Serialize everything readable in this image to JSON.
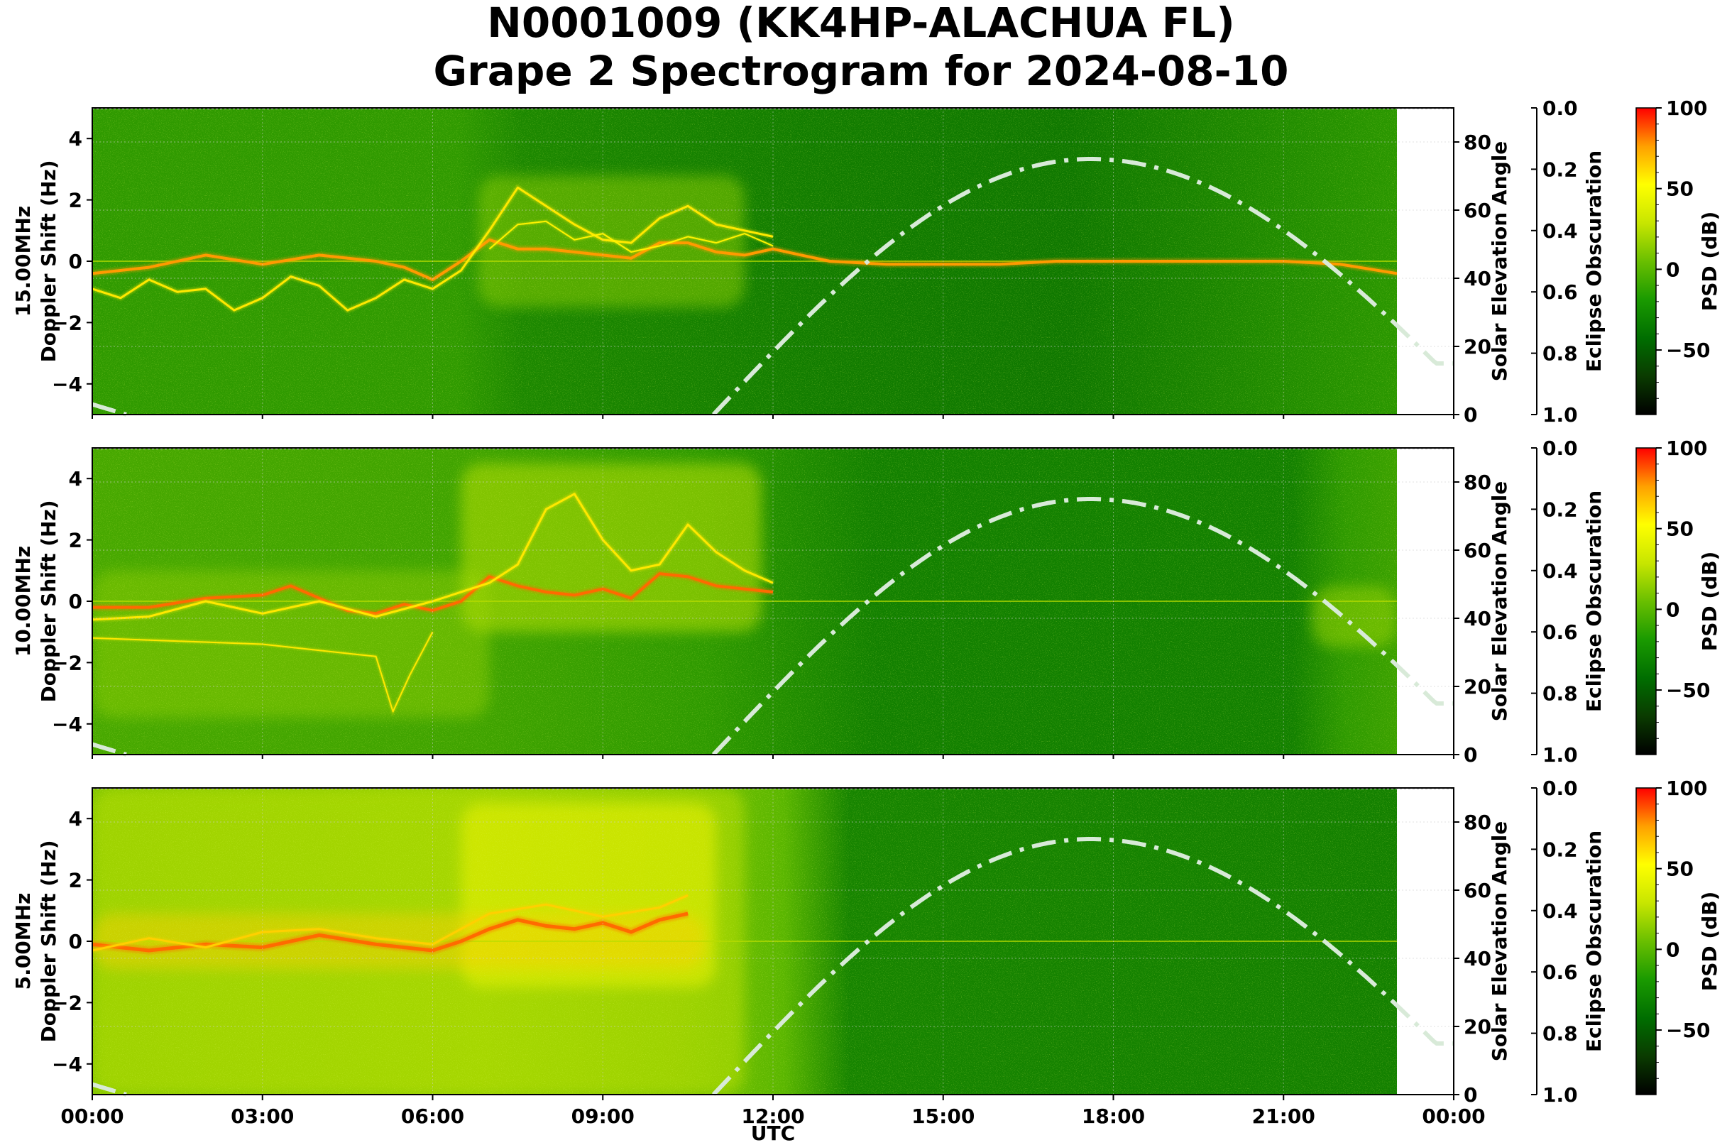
{
  "title_line1": "N0001009 (KK4HP-ALACHUA FL)",
  "title_line2": "Grape 2 Spectrogram for 2024-08-10",
  "chart_data": {
    "type": "heatmap",
    "panels": [
      {
        "ylabel": "15.00MHz\nDoppler Shift (Hz)",
        "band": "15MHz",
        "traces": [
          {
            "t": [
              0,
              1,
              2,
              3,
              4,
              5,
              5.5,
              6,
              6.5,
              7,
              7.5,
              8,
              8.5,
              9,
              9.5,
              10,
              10.5,
              11,
              11.5,
              12,
              12.5,
              13,
              14,
              15,
              16,
              17,
              18,
              19,
              20,
              21,
              22,
              23
            ],
            "f": [
              -0.4,
              -0.2,
              0.2,
              -0.1,
              0.2,
              0.0,
              -0.2,
              -0.6,
              0.0,
              0.7,
              0.4,
              0.4,
              0.3,
              0.2,
              0.1,
              0.6,
              0.6,
              0.3,
              0.2,
              0.4,
              0.2,
              0.0,
              -0.1,
              -0.1,
              -0.1,
              0.0,
              0.0,
              0.0,
              0.0,
              0.0,
              -0.1,
              -0.4
            ],
            "w": 4,
            "c": "#ff9a00"
          },
          {
            "t": [
              0,
              0.5,
              1,
              1.5,
              2,
              2.5,
              3,
              3.5,
              4,
              4.5,
              5,
              5.5,
              6,
              6.5,
              7,
              7.5,
              8,
              8.5,
              9,
              9.5,
              10,
              10.5,
              11,
              11.5,
              12
            ],
            "f": [
              -0.9,
              -1.2,
              -0.6,
              -1.0,
              -0.9,
              -1.6,
              -1.2,
              -0.5,
              -0.8,
              -1.6,
              -1.2,
              -0.6,
              -0.9,
              -0.3,
              1.0,
              2.4,
              1.8,
              1.2,
              0.7,
              0.6,
              1.4,
              1.8,
              1.2,
              1.0,
              0.8
            ],
            "w": 3,
            "c": "#ffe800"
          },
          {
            "t": [
              7,
              7.5,
              8,
              8.5,
              9,
              9.5,
              10,
              10.5,
              11,
              11.5,
              12
            ],
            "f": [
              0.4,
              1.2,
              1.3,
              0.7,
              0.9,
              0.3,
              0.5,
              0.8,
              0.6,
              0.9,
              0.5
            ],
            "w": 2,
            "c": "#fff200"
          }
        ]
      },
      {
        "ylabel": "10.00MHz\nDoppler Shift (Hz)",
        "band": "10MHz",
        "traces": [
          {
            "t": [
              0,
              1,
              2,
              3,
              3.5,
              4,
              4.5,
              5,
              5.5,
              6,
              6.5,
              7,
              7.5,
              8,
              8.5,
              9,
              9.5,
              10,
              10.5,
              11,
              11.5,
              12
            ],
            "f": [
              -0.2,
              -0.2,
              0.1,
              0.2,
              0.5,
              0.1,
              -0.3,
              -0.4,
              -0.1,
              -0.3,
              0.0,
              0.8,
              0.5,
              0.3,
              0.2,
              0.4,
              0.1,
              0.9,
              0.8,
              0.5,
              0.4,
              0.3
            ],
            "w": 4,
            "c": "#ff6a00"
          },
          {
            "t": [
              0,
              1,
              2,
              3,
              4,
              5,
              6,
              7,
              7.5,
              8,
              8.5,
              9,
              9.5,
              10,
              10.5,
              11,
              11.5,
              12
            ],
            "f": [
              -0.6,
              -0.5,
              0.0,
              -0.4,
              0.0,
              -0.5,
              0.0,
              0.6,
              1.2,
              3.0,
              3.5,
              2.0,
              1.0,
              1.2,
              2.5,
              1.6,
              1.0,
              0.6
            ],
            "w": 3,
            "c": "#ffe800"
          },
          {
            "t": [
              0,
              3,
              5,
              5.3,
              5.6,
              6
            ],
            "f": [
              -1.2,
              -1.4,
              -1.8,
              -3.6,
              -2.4,
              -1.0
            ],
            "w": 2,
            "c": "#ffe800"
          }
        ]
      },
      {
        "ylabel": "5.00MHz\nDoppler Shift (Hz)",
        "band": "5MHz",
        "traces": [
          {
            "t": [
              0,
              1,
              2,
              3,
              4,
              5,
              6,
              6.5,
              7,
              7.5,
              8,
              8.5,
              9,
              9.5,
              10,
              10.5
            ],
            "f": [
              -0.1,
              -0.3,
              -0.1,
              -0.2,
              0.2,
              -0.1,
              -0.3,
              0.0,
              0.4,
              0.7,
              0.5,
              0.4,
              0.6,
              0.3,
              0.7,
              0.9
            ],
            "w": 5,
            "c": "#ff6a00"
          },
          {
            "t": [
              0,
              1,
              2,
              3,
              4,
              5,
              6,
              7,
              8,
              9,
              10,
              10.5
            ],
            "f": [
              -0.3,
              0.1,
              -0.2,
              0.3,
              0.4,
              0.1,
              -0.1,
              0.9,
              1.2,
              0.8,
              1.1,
              1.5
            ],
            "w": 3,
            "c": "#ffd000"
          }
        ]
      }
    ],
    "xlabel": "UTC",
    "xticks": [
      "00:00",
      "03:00",
      "06:00",
      "09:00",
      "12:00",
      "15:00",
      "18:00",
      "21:00",
      "00:00"
    ],
    "xlim_hours": [
      0,
      24
    ],
    "data_end_hours": 23,
    "ylim_hz": [
      -5,
      5
    ],
    "yticks": [
      "4",
      "2",
      "0",
      "−2",
      "−4"
    ],
    "elevation": {
      "label": "Solar Elevation Angle",
      "ylim": [
        0,
        90
      ],
      "ticks": [
        "0",
        "20",
        "40",
        "60",
        "80"
      ],
      "sunrise_hours": 10.95,
      "noon_hours": 17.6,
      "peak_deg": 75,
      "start_value_deg": 3,
      "end_value_deg": 15,
      "style": "dash-dot",
      "color": "#d8ead8"
    },
    "eclipse": {
      "label": "Eclipse Obscuration",
      "ticks": [
        "0.0",
        "0.2",
        "0.4",
        "0.6",
        "0.8",
        "1.0"
      ]
    },
    "colorbar": {
      "label": "PSD (dB)",
      "ticks": [
        "100",
        "50",
        "0",
        "−50"
      ],
      "range": [
        -90,
        100
      ],
      "colors": [
        "#000000",
        "#0a3b00",
        "#006e00",
        "#1a9a00",
        "#6abf00",
        "#c8e600",
        "#ffff00",
        "#ffa000",
        "#ff0000"
      ]
    }
  }
}
